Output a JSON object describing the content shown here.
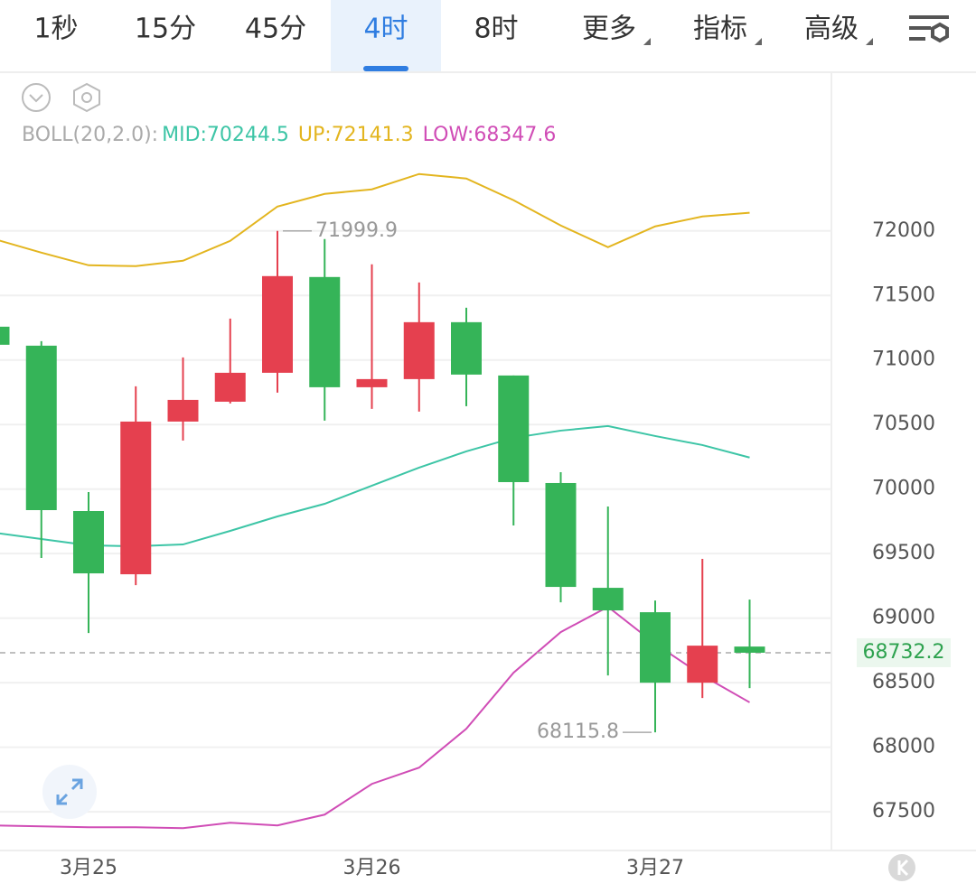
{
  "tabs": {
    "items": [
      "1秒",
      "15分",
      "45分",
      "4时",
      "8时",
      "更多",
      "指标",
      "高级"
    ],
    "active": 3,
    "dropdown_from": 5
  },
  "chart_data": {
    "type": "candlestick",
    "indicator_label": "BOLL(20,2.0):",
    "categories": [
      null,
      null,
      "3月25",
      null,
      null,
      null,
      null,
      null,
      "3月26",
      null,
      null,
      null,
      null,
      null,
      "3月27",
      null,
      null
    ],
    "open": [
      71258,
      71111,
      69830,
      69340,
      70523,
      70677,
      70901,
      71643,
      70789,
      70852,
      71293,
      70880,
      70047,
      69235,
      69046,
      68500,
      68780
    ],
    "close": [
      71118,
      69837,
      69347,
      70523,
      70691,
      70901,
      71650,
      70789,
      70852,
      71293,
      70887,
      70054,
      69242,
      69060,
      68500,
      68787,
      68732.2
    ],
    "high": [
      71258,
      71146,
      69977,
      70796,
      71020,
      71321,
      71999.9,
      71937,
      71741,
      71601,
      71405,
      70880,
      70131,
      69865,
      69137,
      69459,
      69144
    ],
    "low": [
      71118,
      69466,
      68885,
      69256,
      70376,
      70663,
      70747,
      70530,
      70621,
      70600,
      70642,
      69718,
      69123,
      68556,
      68115.8,
      68381,
      68458
    ],
    "up_color": "#e5404f",
    "down_color": "#35b458",
    "series": [
      {
        "legend_label": "MID:70244.5",
        "color": "#3dc5a6",
        "values": [
          69662,
          69613,
          69564,
          69557,
          69571,
          69676,
          69788,
          69886,
          70026,
          70166,
          70292,
          70397,
          70453,
          70488,
          70411,
          70341,
          70244.5
        ]
      },
      {
        "legend_label": "UP:72141.3",
        "color": "#e3b51f",
        "values": [
          71937,
          71832,
          71734,
          71727,
          71769,
          71923,
          72189,
          72287,
          72322,
          72441,
          72406,
          72238,
          72042,
          71874,
          72035,
          72112,
          72141.3
        ]
      },
      {
        "legend_label": "LOW:68347.6",
        "color": "#d04db6",
        "values": [
          67394,
          67387,
          67380,
          67380,
          67373,
          67415,
          67394,
          67478,
          67716,
          67842,
          68143,
          68577,
          68892,
          69088,
          68801,
          68556,
          68347.6
        ]
      }
    ],
    "max_annotation": 71999.9,
    "min_annotation": 68115.8,
    "last_price": 68732.2,
    "ylim": [
      67200,
      72530
    ],
    "yticks": [
      67500,
      68000,
      68500,
      69000,
      69500,
      70000,
      70500,
      71000,
      71500,
      72000
    ],
    "grid": true
  }
}
